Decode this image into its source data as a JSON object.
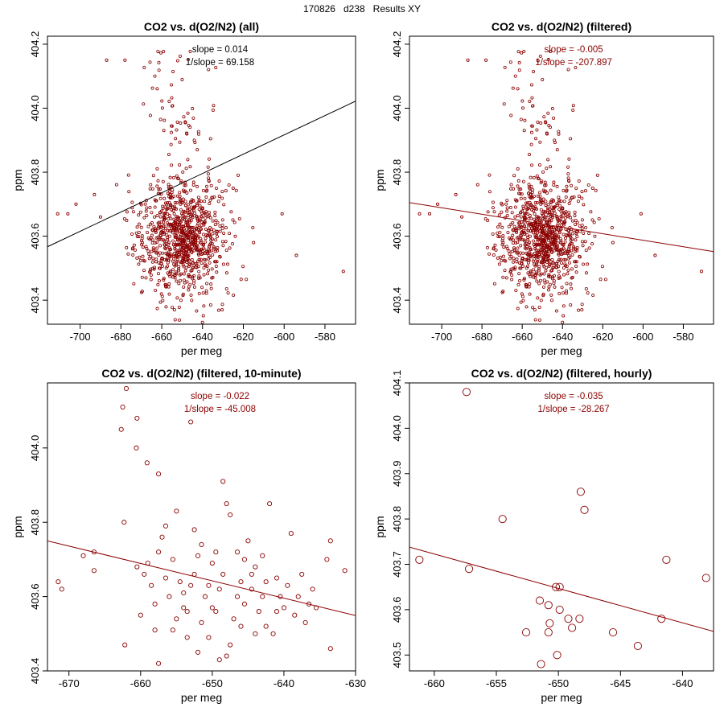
{
  "page_title": "170826   d238   Results XY",
  "colors": {
    "points": "#8B0000",
    "fit_all": "#000000",
    "fit_filtered": "#8B0000"
  },
  "chart_data": [
    {
      "type": "scatter",
      "title": "CO2 vs. d(O2/N2) (all)",
      "xlabel": "per meg",
      "ylabel": "ppm",
      "xlim": [
        -716,
        -565
      ],
      "ylim": [
        403.325,
        404.225
      ],
      "xticks": [
        -700,
        -680,
        -660,
        -640,
        -620,
        -600,
        -580
      ],
      "yticks": [
        403.4,
        403.6,
        403.8,
        404.0,
        404.2
      ],
      "ytick_labels": [
        "403.4",
        "403.6",
        "403.8",
        "404.0",
        "404.2"
      ],
      "marker_size": 1.6,
      "line_color": "#000000",
      "annotations": [
        "slope = 0.014",
        "1/slope = 69.158"
      ],
      "annotation_color": "#000000",
      "cloud": {
        "count": 900,
        "seed": 17,
        "x_center": -650,
        "x_sd": 10.5,
        "y_center": 403.6,
        "y_sd": 0.09,
        "upper_tail": {
          "count": 55,
          "x_center": -652,
          "x_sd": 8,
          "y_min": 403.88,
          "y_max": 404.18
        }
      },
      "points": [
        {
          "x": -702,
          "y": 403.7
        },
        {
          "x": -706,
          "y": 403.67
        },
        {
          "x": -711,
          "y": 403.67
        },
        {
          "x": -693,
          "y": 403.73
        },
        {
          "x": -687,
          "y": 404.15
        },
        {
          "x": -678,
          "y": 404.15
        },
        {
          "x": -601,
          "y": 403.67
        },
        {
          "x": -594,
          "y": 403.54
        },
        {
          "x": -571,
          "y": 403.49
        },
        {
          "x": -615,
          "y": 403.58
        },
        {
          "x": -625,
          "y": 403.75
        },
        {
          "x": -690,
          "y": 403.66
        }
      ],
      "fit": {
        "x": [
          -716,
          -565
        ],
        "y": [
          403.567,
          404.022
        ]
      }
    },
    {
      "type": "scatter",
      "title": "CO2 vs. d(O2/N2) (filtered)",
      "xlabel": "per meg",
      "ylabel": "ppm",
      "xlim": [
        -716,
        -565
      ],
      "ylim": [
        403.325,
        404.225
      ],
      "xticks": [
        -700,
        -680,
        -660,
        -640,
        -620,
        -600,
        -580
      ],
      "yticks": [
        403.4,
        403.6,
        403.8,
        404.0,
        404.2
      ],
      "ytick_labels": [
        "403.4",
        "403.6",
        "403.8",
        "404.0",
        "404.2"
      ],
      "marker_size": 1.6,
      "line_color": "#8B0000",
      "annotations": [
        "slope = -0.005",
        "1/slope = -207.897"
      ],
      "annotation_color": "#8B0000",
      "cloud": {
        "count": 900,
        "seed": 17,
        "x_center": -650,
        "x_sd": 10.5,
        "y_center": 403.6,
        "y_sd": 0.09,
        "upper_tail": {
          "count": 55,
          "x_center": -652,
          "x_sd": 8,
          "y_min": 403.88,
          "y_max": 404.18
        }
      },
      "points": [
        {
          "x": -702,
          "y": 403.7
        },
        {
          "x": -706,
          "y": 403.67
        },
        {
          "x": -711,
          "y": 403.67
        },
        {
          "x": -693,
          "y": 403.73
        },
        {
          "x": -687,
          "y": 404.15
        },
        {
          "x": -678,
          "y": 404.15
        },
        {
          "x": -601,
          "y": 403.67
        },
        {
          "x": -594,
          "y": 403.54
        },
        {
          "x": -571,
          "y": 403.49
        },
        {
          "x": -615,
          "y": 403.58
        },
        {
          "x": -625,
          "y": 403.75
        },
        {
          "x": -690,
          "y": 403.66
        }
      ],
      "fit": {
        "x": [
          -716,
          -565
        ],
        "y": [
          403.705,
          403.552
        ]
      }
    },
    {
      "type": "scatter",
      "title": "CO2 vs. d(O2/N2) (filtered, 10-minute)",
      "xlabel": "per meg",
      "ylabel": "ppm",
      "xlim": [
        -673,
        -630
      ],
      "ylim": [
        403.4,
        404.175
      ],
      "xticks": [
        -670,
        -660,
        -650,
        -640,
        -630
      ],
      "yticks": [
        403.4,
        403.6,
        403.8,
        404.0
      ],
      "ytick_labels": [
        "403.4",
        "403.6",
        "403.8",
        "404.0"
      ],
      "marker_size": 2.6,
      "line_color": "#8B0000",
      "annotations": [
        "slope = -0.022",
        "1/slope = -45.008"
      ],
      "annotation_color": "#8B0000",
      "points": [
        {
          "x": -671.5,
          "y": 403.64
        },
        {
          "x": -671,
          "y": 403.62
        },
        {
          "x": -668,
          "y": 403.71
        },
        {
          "x": -666.5,
          "y": 403.72
        },
        {
          "x": -666.5,
          "y": 403.67
        },
        {
          "x": -662,
          "y": 404.16
        },
        {
          "x": -662.5,
          "y": 404.11
        },
        {
          "x": -662.7,
          "y": 404.05
        },
        {
          "x": -662.3,
          "y": 403.8
        },
        {
          "x": -662.2,
          "y": 403.47
        },
        {
          "x": -660.5,
          "y": 404.08
        },
        {
          "x": -660.6,
          "y": 404.0
        },
        {
          "x": -659.1,
          "y": 403.96
        },
        {
          "x": -657.5,
          "y": 403.93
        },
        {
          "x": -657,
          "y": 403.76
        },
        {
          "x": -656.5,
          "y": 403.79
        },
        {
          "x": -655,
          "y": 403.83
        },
        {
          "x": -653,
          "y": 404.07
        },
        {
          "x": -660.5,
          "y": 403.68
        },
        {
          "x": -659,
          "y": 403.69
        },
        {
          "x": -658.5,
          "y": 403.63
        },
        {
          "x": -660,
          "y": 403.55
        },
        {
          "x": -657.5,
          "y": 403.42
        },
        {
          "x": -658,
          "y": 403.58
        },
        {
          "x": -656,
          "y": 403.6
        },
        {
          "x": -655,
          "y": 403.54
        },
        {
          "x": -654,
          "y": 403.57
        },
        {
          "x": -653,
          "y": 403.63
        },
        {
          "x": -652,
          "y": 403.71
        },
        {
          "x": -651,
          "y": 403.6
        },
        {
          "x": -650,
          "y": 403.69
        },
        {
          "x": -649,
          "y": 403.62
        },
        {
          "x": -648,
          "y": 403.85
        },
        {
          "x": -647.5,
          "y": 403.82
        },
        {
          "x": -646.5,
          "y": 403.72
        },
        {
          "x": -645,
          "y": 403.75
        },
        {
          "x": -644,
          "y": 403.68
        },
        {
          "x": -643,
          "y": 403.6
        },
        {
          "x": -642,
          "y": 403.85
        },
        {
          "x": -641,
          "y": 403.65
        },
        {
          "x": -640,
          "y": 403.57
        },
        {
          "x": -639,
          "y": 403.77
        },
        {
          "x": -638,
          "y": 403.6
        },
        {
          "x": -637,
          "y": 403.53
        },
        {
          "x": -636,
          "y": 403.62
        },
        {
          "x": -634,
          "y": 403.7
        },
        {
          "x": -633.5,
          "y": 403.75
        },
        {
          "x": -633.5,
          "y": 403.46
        },
        {
          "x": -631.5,
          "y": 403.67
        },
        {
          "x": -652,
          "y": 403.45
        },
        {
          "x": -650.5,
          "y": 403.49
        },
        {
          "x": -649,
          "y": 403.43
        },
        {
          "x": -648,
          "y": 403.44
        },
        {
          "x": -646,
          "y": 403.52
        },
        {
          "x": -644,
          "y": 403.5
        },
        {
          "x": -641.5,
          "y": 403.5
        },
        {
          "x": -655.5,
          "y": 403.51
        },
        {
          "x": -653.5,
          "y": 403.56
        },
        {
          "x": -651.5,
          "y": 403.53
        },
        {
          "x": -649.5,
          "y": 403.56
        },
        {
          "x": -647,
          "y": 403.54
        },
        {
          "x": -645.5,
          "y": 403.58
        },
        {
          "x": -643.5,
          "y": 403.56
        },
        {
          "x": -640.5,
          "y": 403.6
        },
        {
          "x": -638.5,
          "y": 403.55
        },
        {
          "x": -636.5,
          "y": 403.58
        },
        {
          "x": -656.5,
          "y": 403.65
        },
        {
          "x": -654.5,
          "y": 403.64
        },
        {
          "x": -652.5,
          "y": 403.66
        },
        {
          "x": -650.5,
          "y": 403.63
        },
        {
          "x": -648.5,
          "y": 403.66
        },
        {
          "x": -646,
          "y": 403.64
        },
        {
          "x": -644.5,
          "y": 403.62
        },
        {
          "x": -642.5,
          "y": 403.64
        },
        {
          "x": -639.5,
          "y": 403.63
        },
        {
          "x": -657.5,
          "y": 403.72
        },
        {
          "x": -655.5,
          "y": 403.7
        },
        {
          "x": -651.5,
          "y": 403.74
        },
        {
          "x": -649.5,
          "y": 403.72
        },
        {
          "x": -645.5,
          "y": 403.7
        },
        {
          "x": -643,
          "y": 403.71
        },
        {
          "x": -659.5,
          "y": 403.66
        },
        {
          "x": -658,
          "y": 403.51
        },
        {
          "x": -653.5,
          "y": 403.49
        },
        {
          "x": -647.5,
          "y": 403.47
        },
        {
          "x": -642.5,
          "y": 403.52
        },
        {
          "x": -637.5,
          "y": 403.66
        },
        {
          "x": -635.5,
          "y": 403.57
        },
        {
          "x": -654,
          "y": 403.61
        },
        {
          "x": -650,
          "y": 403.57
        },
        {
          "x": -646.5,
          "y": 403.6
        },
        {
          "x": -641,
          "y": 403.56
        },
        {
          "x": -648.5,
          "y": 403.91
        },
        {
          "x": -652.5,
          "y": 403.78
        },
        {
          "x": -644.5,
          "y": 403.66
        }
      ],
      "fit": {
        "x": [
          -673,
          -630
        ],
        "y": [
          403.75,
          403.549
        ]
      }
    },
    {
      "type": "scatter",
      "title": "CO2 vs. d(O2/N2) (filtered, hourly)",
      "xlabel": "per meg",
      "ylabel": "ppm",
      "xlim": [
        -662,
        -637.5
      ],
      "ylim": [
        403.465,
        404.1
      ],
      "xticks": [
        -660,
        -655,
        -650,
        -645,
        -640
      ],
      "yticks": [
        403.5,
        403.6,
        403.7,
        403.8,
        403.9,
        404.0,
        404.1
      ],
      "ytick_labels": [
        "403.5",
        "403.6",
        "403.7",
        "403.8",
        "403.9",
        "404.0",
        "404.1"
      ],
      "marker_size": 4.6,
      "line_color": "#8B0000",
      "annotations": [
        "slope = -0.035",
        "1/slope = -28.267"
      ],
      "annotation_color": "#8B0000",
      "points": [
        {
          "x": -661.2,
          "y": 403.71
        },
        {
          "x": -657.4,
          "y": 404.08
        },
        {
          "x": -657.2,
          "y": 403.69
        },
        {
          "x": -654.5,
          "y": 403.8
        },
        {
          "x": -652.6,
          "y": 403.55
        },
        {
          "x": -651.5,
          "y": 403.62
        },
        {
          "x": -651.4,
          "y": 403.48
        },
        {
          "x": -650.8,
          "y": 403.61
        },
        {
          "x": -650.7,
          "y": 403.57
        },
        {
          "x": -650.8,
          "y": 403.55
        },
        {
          "x": -650.2,
          "y": 403.65
        },
        {
          "x": -649.9,
          "y": 403.65
        },
        {
          "x": -650.1,
          "y": 403.5
        },
        {
          "x": -649.9,
          "y": 403.6
        },
        {
          "x": -649.2,
          "y": 403.58
        },
        {
          "x": -648.9,
          "y": 403.56
        },
        {
          "x": -648.3,
          "y": 403.58
        },
        {
          "x": -648.2,
          "y": 403.86
        },
        {
          "x": -647.9,
          "y": 403.82
        },
        {
          "x": -645.6,
          "y": 403.55
        },
        {
          "x": -643.6,
          "y": 403.52
        },
        {
          "x": -641.7,
          "y": 403.58
        },
        {
          "x": -641.3,
          "y": 403.71
        },
        {
          "x": -638.1,
          "y": 403.67
        }
      ],
      "fit": {
        "x": [
          -662,
          -637.5
        ],
        "y": [
          403.738,
          403.552
        ]
      }
    }
  ]
}
